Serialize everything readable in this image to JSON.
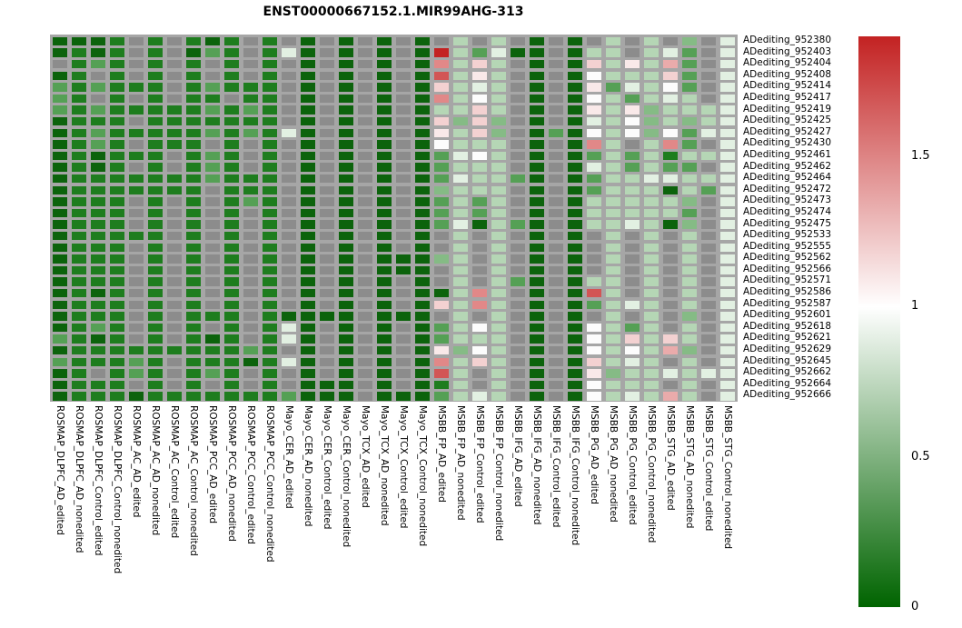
{
  "title": "ENST00000667152.1.MIR99AHG-313",
  "chart_data": {
    "type": "heatmap",
    "title": "ENST00000667152.1.MIR99AHG-313",
    "rows": [
      "ADediting_952380",
      "ADediting_952403",
      "ADediting_952404",
      "ADediting_952408",
      "ADediting_952414",
      "ADediting_952417",
      "ADediting_952419",
      "ADediting_952425",
      "ADediting_952427",
      "ADediting_952430",
      "ADediting_952461",
      "ADediting_952462",
      "ADediting_952464",
      "ADediting_952472",
      "ADediting_952473",
      "ADediting_952474",
      "ADediting_952475",
      "ADediting_952533",
      "ADediting_952555",
      "ADediting_952562",
      "ADediting_952566",
      "ADediting_952571",
      "ADediting_952586",
      "ADediting_952587",
      "ADediting_952601",
      "ADediting_952618",
      "ADediting_952621",
      "ADediting_952629",
      "ADediting_952645",
      "ADediting_952662",
      "ADediting_952664",
      "ADediting_952666"
    ],
    "columns": [
      "ROSMAP_DLPFC_AD_edited",
      "ROSMAP_DLPFC_AD_nonedited",
      "ROSMAP_DLPFC_Control_edited",
      "ROSMAP_DLPFC_Control_nonedited",
      "ROSMAP_AC_AD_edited",
      "ROSMAP_AC_AD_nonedited",
      "ROSMAP_AC_Control_edited",
      "ROSMAP_AC_Control_nonedited",
      "ROSMAP_PCC_AD_edited",
      "ROSMAP_PCC_AD_nonedited",
      "ROSMAP_PCC_Control_edited",
      "ROSMAP_PCC_Control_nonedited",
      "Mayo_CER_AD_edited",
      "Mayo_CER_AD_nonedited",
      "Mayo_CER_Control_edited",
      "Mayo_CER_Control_nonedited",
      "Mayo_TCX_AD_edited",
      "Mayo_TCX_AD_nonedited",
      "Mayo_TCX_Control_edited",
      "Mayo_TCX_Control_nonedited",
      "MSBB_FP_AD_edited",
      "MSBB_FP_AD_nonedited",
      "MSBB_FP_Control_edited",
      "MSBB_FP_Control_nonedited",
      "MSBB_IFG_AD_edited",
      "MSBB_IFG_AD_nonedited",
      "MSBB_IFG_Control_edited",
      "MSBB_IFG_Control_nonedited",
      "MSBB_PG_AD_edited",
      "MSBB_PG_AD_nonedited",
      "MSBB_PG_Control_edited",
      "MSBB_PG_Control_nonedited",
      "MSBB_STG_AD_edited",
      "MSBB_STG_AD_nonedited",
      "MSBB_STG_Control_edited",
      "MSBB_STG_Control_nonedited"
    ],
    "value_codes": {
      "G": {
        "value": 0.03,
        "hex": "#0c630c"
      },
      "h": {
        "value": 0.12,
        "hex": "#1e7d1e"
      },
      "g": {
        "value": 0.38,
        "hex": "#55a055"
      },
      "e": {
        "value": 0.55,
        "hex": "#85bb85"
      },
      "l": {
        "value": 0.7,
        "hex": "#b5d6b5"
      },
      "v": {
        "value": 0.87,
        "hex": "#e2f0e2"
      },
      "w": {
        "value": 1.0,
        "hex": "#fcfcfc"
      },
      "q": {
        "value": 1.1,
        "hex": "#f9e9e9"
      },
      "P": {
        "value": 1.2,
        "hex": "#f3d1d1"
      },
      "p": {
        "value": 1.35,
        "hex": "#eaabab"
      },
      "s": {
        "value": 1.5,
        "hex": "#e18888"
      },
      "r": {
        "value": 1.65,
        "hex": "#d25555"
      },
      "R": {
        "value": 1.85,
        "hex": "#c32222"
      },
      ".": {
        "value": null,
        "hex": "#8c8c8c"
      }
    },
    "na_code": ".",
    "na_meaning": "missing value (gray cell)",
    "cells": [
      "GGGh.h.hGh.h.G.G.G.G.l.l.G.G.l.l.e.v",
      "GhGh.h.Ggh.hvG.G.G.GRlgvGG.Gll.lvg.v",
      ".hgh.h.h.h.h.G.G.G.GslPl.G.GPlqlpg.v",
      "Gh.h.h.h.h.h.G.G.G.Grlql.G.GwlllPg.v",
      "ghghhh.hghhh.G.G.G.GPlvl.G.Gqgvlwg.v",
      "gh.h.h.hh.hh.G.G.G.Gslwl.G.Gwlglvl.v",
      "ghghhhhhghgh.G.G.G.GllPl.G.Gqlqelllv",
      "Ghhh.hhhhhhh.G.G.G.GPePe.G.Gvlwelelv",
      "GhghhhhhghghvG.G.G.GqlPe.GgGwlwewgvv",
      "Ghgh.hhh.h.h.G.G.G.Gwlll.G.Gsl.lsg.v",
      "GhGhhh.hgh.h.G.G.G.Ggvwl.G.Gglglhllv",
      "GhGh.h.hgh.h.G.G.G.Gglll.G.Gvlglgg.v",
      "Ghhhhhhhghhh.G.G.G.GgvllgG.Ggllvvllv",
      "Ghhhhhhh.hhh.G.G.G.Gelll.G.GglllGlgv",
      "Ghhh.h.h.hgh.G.G.G.Gglgl.G.Gllllle.v",
      "Ghhh.h.h.h.h.G.G.G.Gglgl.G.Glllllg.v",
      "Ghhh.h.h.h.h.G.G.G.GgvGlgG.GllvlGe.v",
      "Ghhhhh.h.h.h.G.G.G.G.l.l.G.G.l.l.l.v",
      "Ghhh.h.h.h.h.G.G.G.G.l.l.G.G.l.l.l.v",
      "Ghhh.h.h.h.h.G.G.GGGel.l.G.G.l.l.l.v",
      "Ghhh.h.h.h.h.G.G.GGG.l.l.G.G.l.l.l.v",
      "Ghhh.h.h.h.h.G.G.G.G.l.lgG.Gll.l.l.v",
      "GhGh.h.h.h.h.G.G.G.GGlsl.G.Grl.l.l.v",
      "Ghhh.h.h.h.h.G.G.G.GPlsl.G.Gglvl.l.v",
      "Ghhh.h.hhh.hGGGG.GGG.l.l.G.G.l.l.e.v",
      "Ghgh.h.h.h.hvG.G.G.Gglwl.G.Gwlgl.l.v",
      "ghGh.h.hGh.hvG.G.G.Gglll.G.GwlPlPl.v",
      "Ghhhhhhhhhgh.G.G.G.Gqewl.G.Gwlwlpe.v",
      "ghhhgh.hhhGhvG.G.G.GslPl.G.GPlvl.l.v",
      "Gh.hgh.hgh.h.G.G.G.Grl.l.G.Gqellvlvv",
      "Ghhh.h.h.h.h.GGG.G.Ghl.l.G.Gwlll.l.v",
      "GhhhGhhhhhhhgGGG.GGGglvl.G.Gwlvlpl.v"
    ],
    "grid_background_hex": "#a6a6a6",
    "colorbar": {
      "min": 0,
      "max": 1.9,
      "ticks": [
        {
          "label": "1.5",
          "value": 1.5
        },
        {
          "label": "1",
          "value": 1.0
        },
        {
          "label": "0.5",
          "value": 0.5
        },
        {
          "label": "0",
          "value": 0.0
        }
      ],
      "top_color": "#c32222",
      "mid_color": "#ffffff",
      "mid_value": 1.0,
      "bottom_color": "#006400",
      "legend_position": "right"
    },
    "xlabel": "",
    "ylabel": "",
    "grid": false
  }
}
